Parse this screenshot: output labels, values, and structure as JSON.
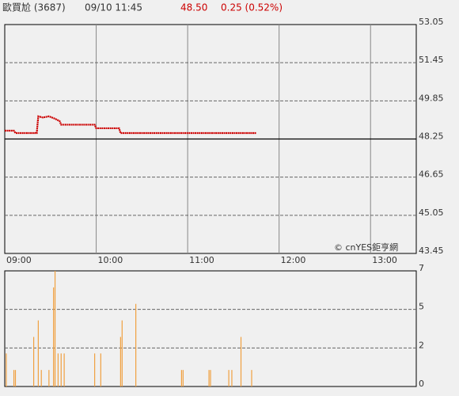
{
  "header": {
    "name": "歐買尬 (3687)",
    "time": "09/10 11:45",
    "price": "48.50",
    "change": "0.25 (0.52%)"
  },
  "chart_data": [
    {
      "type": "line",
      "copyright": "© cnYES鉅亨網",
      "x": [
        "09:00",
        "09:06",
        "09:07",
        "09:21",
        "09:22",
        "09:25",
        "09:29",
        "09:33",
        "09:36",
        "09:37",
        "09:59",
        "10:00",
        "10:15",
        "10:16",
        "11:45"
      ],
      "series": [
        {
          "color": "#cc0000",
          "values": [
            48.6,
            48.6,
            48.5,
            48.5,
            49.2,
            49.15,
            49.2,
            49.1,
            49.0,
            48.85,
            48.85,
            48.7,
            48.7,
            48.5,
            48.5
          ]
        }
      ],
      "reference_line": 48.25,
      "xlim": [
        "09:00",
        "13:30"
      ],
      "xticks": [
        "09:00",
        "10:00",
        "11:00",
        "12:00",
        "13:00"
      ],
      "ylim": [
        43.45,
        53.05
      ],
      "yticks": [
        53.05,
        51.45,
        49.85,
        48.25,
        46.65,
        45.05,
        43.45
      ],
      "grid": true
    },
    {
      "type": "bar",
      "x": [
        "09:01",
        "09:06",
        "09:07",
        "09:19",
        "09:22",
        "09:24",
        "09:29",
        "09:32",
        "09:33",
        "09:35",
        "09:37",
        "09:39",
        "09:59",
        "10:03",
        "10:16",
        "10:17",
        "10:26",
        "10:56",
        "10:57",
        "11:14",
        "11:15",
        "11:27",
        "11:29",
        "11:35",
        "11:42"
      ],
      "values": [
        2,
        1,
        1,
        3,
        4,
        1,
        1,
        6,
        7,
        2,
        2,
        2,
        2,
        2,
        3,
        4,
        5,
        1,
        1,
        1,
        1,
        1,
        1,
        3,
        1
      ],
      "color": "#f0a040",
      "xlim": [
        "09:00",
        "13:30"
      ],
      "ylim": [
        0,
        7
      ],
      "yticks": [
        7,
        {
          "value": 4.67,
          "label": "5"
        },
        {
          "value": 2.33,
          "label": "2"
        },
        0
      ],
      "grid": true
    }
  ]
}
